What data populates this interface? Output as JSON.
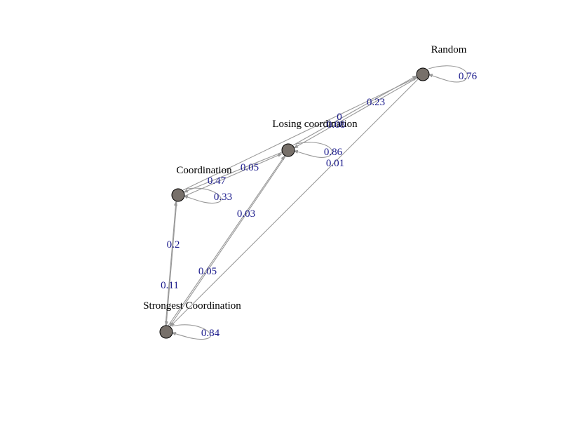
{
  "colors": {
    "node_fill": "#77706a",
    "edge": "#999999",
    "edge_label": "#1a1a8c",
    "node_label": "#000000"
  },
  "nodes": [
    {
      "id": "random",
      "label": "Random"
    },
    {
      "id": "losing",
      "label": "Losing coordination"
    },
    {
      "id": "coordination",
      "label": "Coordination"
    },
    {
      "id": "strongest",
      "label": "Strongest Coordination"
    }
  ],
  "edges": [
    {
      "id": "random-self",
      "from": "Random",
      "to": "Random",
      "label": "0.76"
    },
    {
      "id": "random-to-losing",
      "from": "Random",
      "to": "Losing coordination",
      "label": "0.23"
    },
    {
      "id": "losing-to-random",
      "from": "Losing coordination",
      "to": "Random",
      "label": "0"
    },
    {
      "id": "losing-self",
      "from": "Losing coordination",
      "to": "Losing coordination",
      "label": "0.86"
    },
    {
      "id": "coordination-to-random",
      "from": "Coordination",
      "to": "Random",
      "label": "0.08"
    },
    {
      "id": "losing-to-coordination",
      "from": "Losing coordination",
      "to": "Coordination",
      "label": "0.05"
    },
    {
      "id": "random-to-strongest",
      "from": "Random",
      "to": "Strongest Coordination",
      "label": "0.01"
    },
    {
      "id": "coordination-self",
      "from": "Coordination",
      "to": "Coordination",
      "label": "0.33"
    },
    {
      "id": "coordination-to-losing",
      "from": "Coordination",
      "to": "Losing coordination",
      "label": "0.47"
    },
    {
      "id": "strongest-to-losing",
      "from": "Strongest Coordination",
      "to": "Losing coordination",
      "label": "0.03"
    },
    {
      "id": "losing-to-strongest",
      "from": "Losing coordination",
      "to": "Strongest Coordination",
      "label": "0.05"
    },
    {
      "id": "strongest-to-coordination",
      "from": "Strongest Coordination",
      "to": "Coordination",
      "label": "0.2"
    },
    {
      "id": "coordination-to-strongest",
      "from": "Coordination",
      "to": "Strongest Coordination",
      "label": "0.11"
    },
    {
      "id": "strongest-self",
      "from": "Strongest Coordination",
      "to": "Strongest Coordination",
      "label": "0.84"
    }
  ]
}
